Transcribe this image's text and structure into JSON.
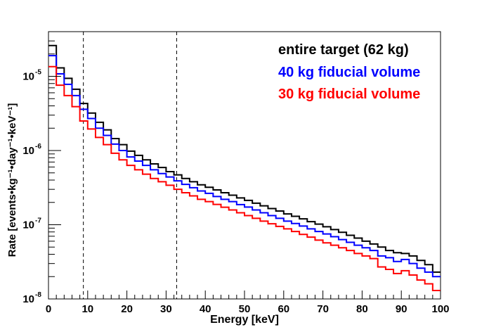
{
  "chart_data": {
    "type": "line",
    "xlabel": "Energy [keV]",
    "ylabel": "Rate [events•kg⁻¹•day⁻¹•keV⁻¹]",
    "xlim": [
      0,
      100
    ],
    "ylim": [
      1e-08,
      4e-05
    ],
    "yscale": "log",
    "grid": false,
    "legend_placement": "top-right",
    "x_ticks": [
      0,
      10,
      20,
      30,
      40,
      50,
      60,
      70,
      80,
      90,
      100
    ],
    "x_tick_labels": [
      "0",
      "10",
      "20",
      "30",
      "40",
      "50",
      "60",
      "70",
      "80",
      "90",
      "100"
    ],
    "y_ticks": [
      1e-08,
      1e-07,
      1e-06,
      1e-05
    ],
    "y_tick_labels": [
      {
        "base": "10",
        "exp": "-8"
      },
      {
        "base": "10",
        "exp": "-7"
      },
      {
        "base": "10",
        "exp": "-6"
      },
      {
        "base": "10",
        "exp": "-5"
      }
    ],
    "vertical_lines": [
      8.9,
      32.7
    ],
    "bin_width": 2,
    "bin_edges_start": 0,
    "series": [
      {
        "name": "entire target (62 kg)",
        "color": "#000000",
        "values": [
          2.6e-05,
          1.3e-05,
          9.4e-06,
          6.7e-06,
          4.3e-06,
          3.2e-06,
          2.4e-06,
          1.9e-06,
          1.45e-06,
          1.2e-06,
          9.8e-07,
          8.6e-07,
          7.5e-07,
          6.6e-07,
          5.9e-07,
          5.2e-07,
          4.7e-07,
          4.2e-07,
          3.8e-07,
          3.45e-07,
          3.2e-07,
          2.95e-07,
          2.7e-07,
          2.5e-07,
          2.3e-07,
          2.13e-07,
          1.95e-07,
          1.8e-07,
          1.65e-07,
          1.53e-07,
          1.4e-07,
          1.3e-07,
          1.2e-07,
          1.1e-07,
          1.02e-07,
          9.4e-08,
          8.6e-08,
          7.9e-08,
          7.2e-08,
          6.6e-08,
          6e-08,
          5.5e-08,
          5e-08,
          4.5e-08,
          4.2e-08,
          4.1e-08,
          3.8e-08,
          3.3e-08,
          2.9e-08,
          2.3e-08,
          1.95e-08,
          1.75e-08,
          1.55e-08
        ]
      },
      {
        "name": "40 kg fiducial volume",
        "color": "#0000ff",
        "values": [
          1.9e-05,
          1.08e-05,
          7.8e-06,
          5.5e-06,
          3.6e-06,
          2.7e-06,
          2e-06,
          1.6e-06,
          1.22e-06,
          1e-06,
          8.2e-07,
          7.2e-07,
          6.3e-07,
          5.5e-07,
          4.9e-07,
          4.4e-07,
          3.9e-07,
          3.5e-07,
          3.15e-07,
          2.85e-07,
          2.65e-07,
          2.4e-07,
          2.2e-07,
          2.05e-07,
          1.87e-07,
          1.73e-07,
          1.58e-07,
          1.45e-07,
          1.33e-07,
          1.22e-07,
          1.12e-07,
          1.04e-07,
          9.6e-08,
          8.8e-08,
          8.1e-08,
          7.5e-08,
          6.9e-08,
          6.3e-08,
          5.8e-08,
          5.3e-08,
          4.9e-08,
          4.5e-08,
          3.8e-08,
          3.6e-08,
          3.2e-08,
          3.4e-08,
          3e-08,
          2.6e-08,
          2.3e-08,
          2e-08,
          1.75e-08,
          1.55e-08,
          1.25e-08
        ]
      },
      {
        "name": "30 kg fiducial volume",
        "color": "#ff0000",
        "values": [
          1.35e-05,
          7.6e-06,
          5.5e-06,
          3.9e-06,
          2.5e-06,
          1.95e-06,
          1.5e-06,
          1.2e-06,
          9.2e-07,
          7.5e-07,
          6.3e-07,
          5.5e-07,
          4.8e-07,
          4.2e-07,
          3.8e-07,
          3.4e-07,
          3e-07,
          2.7e-07,
          2.45e-07,
          2.2e-07,
          2.05e-07,
          1.88e-07,
          1.72e-07,
          1.58e-07,
          1.45e-07,
          1.33e-07,
          1.22e-07,
          1.12e-07,
          1.03e-07,
          9.5e-08,
          8.8e-08,
          8.1e-08,
          7.4e-08,
          6.8e-08,
          6.2e-08,
          5.7e-08,
          5.3e-08,
          4.9e-08,
          4.5e-08,
          4.1e-08,
          3.8e-08,
          3.5e-08,
          2.7e-08,
          2.5e-08,
          2.2e-08,
          2.4e-08,
          2.1e-08,
          1.8e-08,
          1.6e-08,
          1.3e-08,
          1.05e-08,
          1.35e-08,
          1e-08
        ]
      }
    ]
  }
}
